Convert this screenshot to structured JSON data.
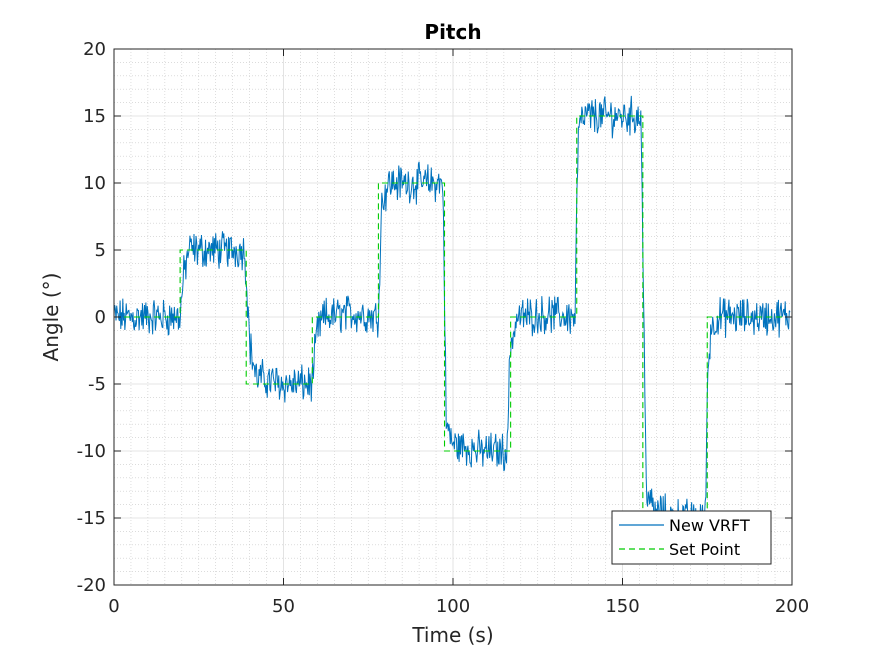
{
  "chart_data": {
    "type": "line",
    "title": "Pitch",
    "xlabel": "Time (s)",
    "ylabel": "Angle (°)",
    "xlim": [
      0,
      200
    ],
    "ylim": [
      -20,
      20
    ],
    "xticks": [
      0,
      50,
      100,
      150,
      200
    ],
    "xtick_labels": [
      "0",
      "50",
      "100",
      "150",
      "200"
    ],
    "yticks": [
      -20,
      -15,
      -10,
      -5,
      0,
      5,
      10,
      15,
      20
    ],
    "ytick_labels": [
      "-20",
      "-15",
      "-10",
      "-5",
      "0",
      "5",
      "10",
      "15",
      "20"
    ],
    "grid": true,
    "minor_grid": true,
    "legend_position": "bottom-right",
    "series": [
      {
        "name": "New VRFT",
        "color": "#0072BD",
        "style": "solid",
        "x": [
          0,
          19.5,
          20.5,
          22,
          30,
          38.5,
          39.5,
          40,
          42,
          50,
          58.5,
          59.5,
          60,
          62,
          70,
          78,
          78.5,
          79,
          81,
          90,
          97,
          97.5,
          98,
          100,
          108,
          116,
          116.5,
          117,
          119,
          128,
          136,
          136.5,
          137,
          139,
          148,
          155.5,
          156,
          157,
          159,
          168,
          174.5,
          175,
          176,
          178,
          190,
          199.5
        ],
        "y": [
          0,
          0,
          3,
          5,
          5,
          5,
          1,
          -2,
          -4.5,
          -5,
          -5,
          -2,
          -1,
          0,
          0.3,
          0,
          5,
          8.5,
          10,
          10,
          10,
          2,
          -8,
          -9.5,
          -10,
          -10,
          -5,
          -2,
          0,
          0.2,
          0,
          8,
          14,
          15,
          15,
          15,
          5,
          -12.5,
          -14.5,
          -15,
          -15,
          -5,
          -1,
          0,
          0,
          0
        ]
      },
      {
        "name": "Set Point",
        "color": "#00CC00",
        "style": "dashed",
        "x": [
          0,
          19.5,
          19.5,
          39,
          39,
          58.5,
          58.5,
          78,
          78,
          97.5,
          97.5,
          117,
          117,
          136.5,
          136.5,
          156,
          156,
          175,
          175,
          200
        ],
        "y": [
          0,
          0,
          5,
          5,
          -5,
          -5,
          0,
          0,
          10,
          10,
          -10,
          -10,
          0,
          0,
          15,
          15,
          -15,
          -15,
          0,
          0
        ]
      }
    ]
  }
}
